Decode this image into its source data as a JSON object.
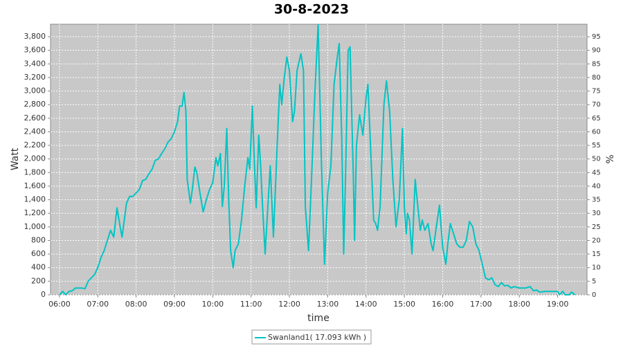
{
  "chart_data": {
    "type": "line",
    "title": "30-8-2023",
    "x_label": "time",
    "y_label": "Watt",
    "y2_label": "%",
    "x": [
      "06:00",
      "06:05",
      "06:10",
      "06:15",
      "06:20",
      "06:25",
      "06:35",
      "06:40",
      "06:45",
      "06:50",
      "06:55",
      "07:00",
      "07:05",
      "07:10",
      "07:15",
      "07:20",
      "07:25",
      "07:30",
      "07:35",
      "07:38",
      "07:45",
      "07:50",
      "07:55",
      "08:00",
      "08:05",
      "08:10",
      "08:15",
      "08:20",
      "08:25",
      "08:30",
      "08:35",
      "08:40",
      "08:45",
      "08:50",
      "08:55",
      "09:00",
      "09:05",
      "09:08",
      "09:12",
      "09:15",
      "09:18",
      "09:20",
      "09:25",
      "09:28",
      "09:32",
      "09:35",
      "09:40",
      "09:45",
      "09:50",
      "09:55",
      "10:00",
      "10:05",
      "10:08",
      "10:12",
      "10:15",
      "10:18",
      "10:22",
      "10:25",
      "10:28",
      "10:32",
      "10:35",
      "10:40",
      "10:45",
      "10:50",
      "10:55",
      "10:58",
      "11:02",
      "11:05",
      "11:08",
      "11:12",
      "11:15",
      "11:18",
      "11:22",
      "11:25",
      "11:30",
      "11:35",
      "11:40",
      "11:45",
      "11:48",
      "11:52",
      "11:56",
      "12:00",
      "12:05",
      "12:08",
      "12:12",
      "12:18",
      "12:22",
      "12:25",
      "12:30",
      "12:35",
      "12:40",
      "12:45",
      "12:50",
      "12:55",
      "13:00",
      "13:05",
      "13:10",
      "13:15",
      "13:18",
      "13:22",
      "13:25",
      "13:28",
      "13:32",
      "13:35",
      "13:40",
      "13:42",
      "13:45",
      "13:50",
      "13:55",
      "14:00",
      "14:03",
      "14:07",
      "14:12",
      "14:15",
      "14:18",
      "14:22",
      "14:28",
      "14:32",
      "14:37",
      "14:42",
      "14:47",
      "14:52",
      "14:57",
      "15:00",
      "15:03",
      "15:05",
      "15:08",
      "15:12",
      "15:17",
      "15:20",
      "15:25",
      "15:28",
      "15:32",
      "15:37",
      "15:42",
      "15:45",
      "15:50",
      "15:55",
      "16:00",
      "16:05",
      "16:08",
      "16:12",
      "16:17",
      "16:22",
      "16:27",
      "16:32",
      "16:37",
      "16:42",
      "16:47",
      "16:52",
      "16:57",
      "17:02",
      "17:07",
      "17:12",
      "17:17",
      "17:22",
      "17:27",
      "17:32",
      "17:37",
      "17:42",
      "17:47",
      "17:52",
      "18:00",
      "18:10",
      "18:17",
      "18:22",
      "18:27",
      "18:32",
      "18:40",
      "18:50",
      "19:00",
      "19:03",
      "19:08",
      "19:12",
      "19:18",
      "19:22",
      "19:27"
    ],
    "series": [
      {
        "name": "Swanland1( 17.093 kWh )",
        "color": "#00c4c4",
        "values": [
          0,
          50,
          0,
          50,
          60,
          100,
          100,
          90,
          200,
          250,
          300,
          400,
          550,
          650,
          800,
          950,
          850,
          1280,
          1000,
          850,
          1350,
          1450,
          1450,
          1500,
          1550,
          1680,
          1700,
          1780,
          1850,
          1980,
          2000,
          2080,
          2150,
          2250,
          2300,
          2400,
          2550,
          2780,
          2780,
          2980,
          2700,
          1700,
          1350,
          1550,
          1880,
          1800,
          1500,
          1220,
          1400,
          1550,
          1650,
          2020,
          1900,
          2080,
          1300,
          1600,
          2450,
          1400,
          650,
          400,
          650,
          750,
          1100,
          1600,
          2020,
          1850,
          2780,
          2000,
          1280,
          2350,
          1900,
          1300,
          600,
          1100,
          1900,
          850,
          2000,
          3100,
          2800,
          3200,
          3500,
          3300,
          2550,
          2700,
          3300,
          3550,
          3300,
          1300,
          650,
          1800,
          3000,
          3980,
          2000,
          450,
          1500,
          1900,
          3100,
          3500,
          3700,
          2300,
          600,
          1800,
          3600,
          3650,
          1800,
          800,
          2200,
          2650,
          2350,
          2900,
          3100,
          2200,
          1100,
          1050,
          950,
          1300,
          2800,
          3150,
          2700,
          1700,
          1000,
          1400,
          2450,
          1300,
          900,
          1200,
          1100,
          600,
          1700,
          1400,
          950,
          1100,
          950,
          1050,
          750,
          650,
          1000,
          1320,
          700,
          450,
          750,
          1050,
          900,
          750,
          700,
          700,
          800,
          1080,
          1000,
          750,
          650,
          450,
          250,
          220,
          250,
          150,
          120,
          180,
          130,
          140,
          100,
          120,
          100,
          100,
          120,
          60,
          70,
          40,
          50,
          50,
          50,
          0,
          50,
          0,
          0,
          40,
          0
        ]
      }
    ],
    "xlim": [
      "05:46",
      "19:46"
    ],
    "xticks": [
      "06:00",
      "07:00",
      "08:00",
      "09:00",
      "10:00",
      "11:00",
      "12:00",
      "13:00",
      "14:00",
      "15:00",
      "16:00",
      "17:00",
      "18:00",
      "19:00"
    ],
    "ylim": [
      0,
      3984
    ],
    "yticks": [
      0,
      200,
      400,
      600,
      800,
      {
        "value": 1000,
        "label": "1,000"
      },
      {
        "value": 1200,
        "label": "1,200"
      },
      {
        "value": 1400,
        "label": "1,400"
      },
      {
        "value": 1600,
        "label": "1,600"
      },
      {
        "value": 1800,
        "label": "1,800"
      },
      {
        "value": 2000,
        "label": "2,000"
      },
      {
        "value": 2200,
        "label": "2,200"
      },
      {
        "value": 2400,
        "label": "2,400"
      },
      {
        "value": 2600,
        "label": "2,600"
      },
      {
        "value": 2800,
        "label": "2,800"
      },
      {
        "value": 3000,
        "label": "3,000"
      },
      {
        "value": 3200,
        "label": "3,200"
      },
      {
        "value": 3400,
        "label": "3,400"
      },
      {
        "value": 3600,
        "label": "3,600"
      },
      {
        "value": 3800,
        "label": "3,800"
      }
    ],
    "y2lim": [
      0,
      99.6
    ],
    "y2ticks": [
      0,
      5,
      10,
      15,
      20,
      25,
      30,
      35,
      40,
      45,
      50,
      55,
      60,
      65,
      70,
      75,
      80,
      85,
      90,
      95
    ],
    "grid": true
  }
}
